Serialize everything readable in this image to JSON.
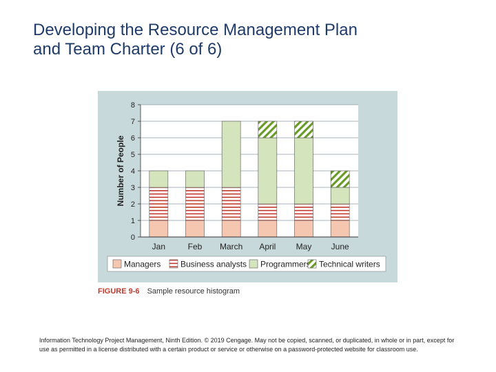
{
  "slide": {
    "title_line1": "Developing the Resource Management Plan",
    "title_line2": "and Team Charter (6 of 6)"
  },
  "figure": {
    "number": "FIGURE 9-6",
    "caption": "Sample resource histogram"
  },
  "footer": {
    "text": "Information Technology Project Management, Ninth Edition. © 2019 Cengage. May not be copied, scanned, or duplicated, in whole or in part, except for use as permitted in a license distributed with a certain product or service or otherwise on a password-protected website for classroom use."
  },
  "colors": {
    "figure_background": "#c8d9dc",
    "plot_background": "#ffffff",
    "managers": "#f5c6b0",
    "business_analysts_stripe": "#c0392b",
    "programmers": "#d4e4bc",
    "technical_writers_stripe": "#6a9a28"
  },
  "chart_data": {
    "type": "bar",
    "stacked": true,
    "title": "",
    "xlabel": "",
    "ylabel": "Number of People",
    "ylim": [
      0,
      8
    ],
    "yticks": [
      0,
      1,
      2,
      3,
      4,
      5,
      6,
      7,
      8
    ],
    "grid": true,
    "legend_position": "bottom",
    "categories": [
      "Jan",
      "Feb",
      "March",
      "April",
      "May",
      "June"
    ],
    "series": [
      {
        "name": "Managers",
        "values": [
          1,
          1,
          1,
          1,
          1,
          1
        ]
      },
      {
        "name": "Business analysts",
        "values": [
          2,
          2,
          2,
          1,
          1,
          1
        ]
      },
      {
        "name": "Programmers",
        "values": [
          1,
          1,
          4,
          4,
          4,
          1
        ]
      },
      {
        "name": "Technical writers",
        "values": [
          0,
          0,
          0,
          1,
          1,
          1
        ]
      }
    ]
  }
}
